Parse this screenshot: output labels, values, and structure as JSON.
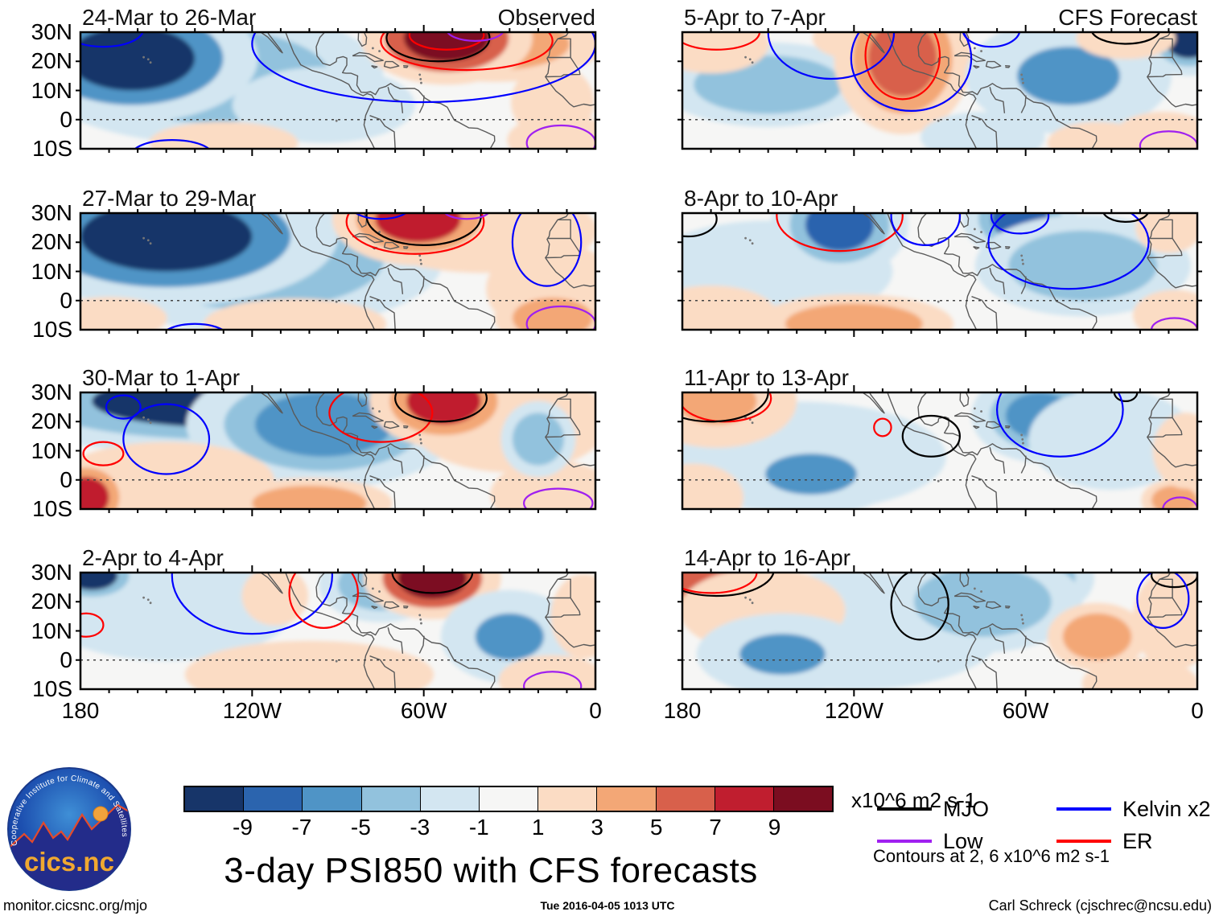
{
  "figure": {
    "title": "3-day PSI850 with CFS forecasts",
    "footer_left": "monitor.cicsnc.org/mjo",
    "footer_center": "Tue 2016-04-05 1013 UTC",
    "footer_right": "Carl Schreck (cjschrec@ncsu.edu)"
  },
  "logo": {
    "ring_text": "Cooperative Institute for Climate and Satellites",
    "name": "cics.nc"
  },
  "colorbar": {
    "units": "x10^6 m2 s-1",
    "tick_labels": [
      "-9",
      "-7",
      "-5",
      "-3",
      "-1",
      "1",
      "3",
      "5",
      "7",
      "9"
    ],
    "colors": [
      "#173569",
      "#2b64ae",
      "#4f94c6",
      "#92c2dd",
      "#d3e6f1",
      "#f6f6f5",
      "#fbdcc4",
      "#f3a776",
      "#d8604b",
      "#c01e2f",
      "#7b0d20"
    ]
  },
  "legend": {
    "items": [
      {
        "key": "mjo",
        "label": "MJO",
        "color": "#000000"
      },
      {
        "key": "kelvin",
        "label": "Kelvin x2",
        "color": "#0000ff"
      },
      {
        "key": "low",
        "label": "Low",
        "color": "#a020f0"
      },
      {
        "key": "er",
        "label": "ER",
        "color": "#ff0000"
      }
    ],
    "note": "Contours at 2, 6 x10^6 m2 s-1"
  },
  "axes": {
    "lon_tick_labels": [
      "180",
      "120W",
      "60W",
      "0"
    ],
    "lon_tick_values": [
      -180,
      -120,
      -60,
      0
    ],
    "lat_tick_labels": [
      "30N",
      "20N",
      "10N",
      "0",
      "10S"
    ],
    "lat_tick_values": [
      30,
      20,
      10,
      0,
      -10
    ],
    "lon_range": [
      -180,
      0
    ],
    "lat_range": [
      -10,
      30
    ]
  },
  "chart_data": {
    "type": "filled-contour-map-grid",
    "field": "PSI850 anomaly",
    "units": "x10^6 m2 s-1",
    "shading_levels": [
      -9,
      -7,
      -5,
      -3,
      -1,
      1,
      3,
      5,
      7,
      9
    ],
    "contour_levels": [
      2,
      6
    ],
    "grid": {
      "rows": 4,
      "cols": 2,
      "left_column": "Observed",
      "right_column": "CFS Forecast"
    },
    "panels": [
      {
        "title": "24-Mar to 26-Mar",
        "corner_label": "Observed",
        "kind": "observed",
        "blobs": [
          [
            -135,
            15,
            42,
            16,
            -3
          ],
          [
            -162,
            21,
            22,
            11,
            -10
          ],
          [
            -95,
            5,
            22,
            9,
            -2
          ],
          [
            -35,
            26,
            26,
            9,
            4
          ],
          [
            -52,
            28,
            15,
            8,
            10
          ],
          [
            -15,
            6,
            10,
            9,
            2
          ],
          [
            -12,
            -7,
            13,
            6,
            3
          ],
          [
            -130,
            -8,
            18,
            5,
            2
          ]
        ],
        "contours": [
          [
            "kelvin",
            -60,
            26,
            60,
            20
          ],
          [
            "kelvin",
            -172,
            31,
            14,
            6
          ],
          [
            "kelvin",
            -148,
            -12,
            14,
            5
          ],
          [
            "er",
            -45,
            27,
            30,
            10
          ],
          [
            "er",
            -52,
            29,
            13,
            5
          ],
          [
            "mjo",
            -55,
            28,
            18,
            8
          ],
          [
            "low",
            -42,
            31,
            10,
            4
          ],
          [
            "low",
            -12,
            -8,
            12,
            6
          ]
        ]
      },
      {
        "title": "5-Apr to 7-Apr",
        "corner_label": "CFS Forecast",
        "kind": "forecast",
        "blobs": [
          [
            -150,
            12,
            26,
            10,
            -4
          ],
          [
            -170,
            26,
            14,
            7,
            2
          ],
          [
            -120,
            28,
            10,
            5,
            2
          ],
          [
            -103,
            21,
            12,
            13,
            7
          ],
          [
            -45,
            15,
            18,
            10,
            -5
          ],
          [
            -3,
            27,
            8,
            6,
            -9
          ],
          [
            -25,
            28,
            12,
            5,
            3
          ],
          [
            -12,
            -6,
            12,
            6,
            3
          ],
          [
            -75,
            -6,
            15,
            6,
            -2
          ],
          [
            -35,
            -8,
            12,
            5,
            2
          ]
        ],
        "contours": [
          [
            "er",
            -168,
            30,
            15,
            6
          ],
          [
            "er",
            -103,
            22,
            13,
            15
          ],
          [
            "kelvin",
            -128,
            30,
            22,
            16
          ],
          [
            "kelvin",
            -100,
            21,
            21,
            18
          ],
          [
            "kelvin",
            -72,
            31,
            10,
            6
          ],
          [
            "mjo",
            -25,
            31,
            12,
            5
          ],
          [
            "low",
            -10,
            -9,
            10,
            5
          ]
        ]
      },
      {
        "title": "27-Mar to 29-Mar",
        "corner_label": "",
        "kind": "observed",
        "blobs": [
          [
            -120,
            14,
            46,
            17,
            -4
          ],
          [
            -150,
            22,
            30,
            12,
            -10
          ],
          [
            -40,
            24,
            28,
            10,
            3
          ],
          [
            -62,
            28,
            15,
            8,
            8
          ],
          [
            -15,
            4,
            16,
            11,
            2
          ],
          [
            -15,
            -6,
            14,
            7,
            4
          ],
          [
            -105,
            -8,
            22,
            6,
            3
          ],
          [
            -170,
            -6,
            14,
            5,
            2
          ]
        ],
        "contours": [
          [
            "mjo",
            -60,
            29,
            20,
            10
          ],
          [
            "er",
            -63,
            27,
            24,
            11
          ],
          [
            "kelvin",
            -17,
            20,
            12,
            15
          ],
          [
            "kelvin",
            -140,
            -13,
            12,
            5
          ],
          [
            "kelvin",
            -75,
            32,
            10,
            4
          ],
          [
            "low",
            -12,
            -8,
            12,
            6
          ],
          [
            "low",
            -45,
            31,
            8,
            3
          ]
        ]
      },
      {
        "title": "8-Apr to 10-Apr",
        "corner_label": "",
        "kind": "forecast",
        "blobs": [
          [
            -150,
            10,
            30,
            12,
            -2
          ],
          [
            -125,
            26,
            12,
            9,
            -7
          ],
          [
            -62,
            28,
            10,
            7,
            -8
          ],
          [
            -40,
            12,
            26,
            12,
            -4
          ],
          [
            -170,
            -5,
            16,
            7,
            2
          ],
          [
            -120,
            -8,
            24,
            7,
            4
          ],
          [
            -10,
            25,
            8,
            6,
            2
          ],
          [
            -8,
            -5,
            10,
            6,
            2
          ]
        ],
        "contours": [
          [
            "er",
            -125,
            29,
            22,
            12
          ],
          [
            "kelvin",
            -95,
            29,
            12,
            10
          ],
          [
            "kelvin",
            -45,
            20,
            28,
            16
          ],
          [
            "kelvin",
            -62,
            29,
            10,
            6
          ],
          [
            "mjo",
            -178,
            28,
            10,
            6
          ],
          [
            "mjo",
            -25,
            31,
            8,
            4
          ],
          [
            "low",
            -8,
            -10,
            8,
            4
          ]
        ]
      },
      {
        "title": "30-Mar to 1-Apr",
        "corner_label": "",
        "kind": "observed",
        "blobs": [
          [
            -130,
            27,
            46,
            9,
            -9
          ],
          [
            -95,
            19,
            24,
            11,
            -6
          ],
          [
            -150,
            0,
            26,
            9,
            2
          ],
          [
            -30,
            20,
            24,
            12,
            3
          ],
          [
            -53,
            27,
            13,
            8,
            9
          ],
          [
            -178,
            -6,
            8,
            7,
            8
          ],
          [
            -100,
            -8,
            20,
            6,
            4
          ],
          [
            -15,
            -5,
            15,
            8,
            3
          ],
          [
            -20,
            14,
            9,
            9,
            -3
          ]
        ],
        "contours": [
          [
            "kelvin",
            -165,
            25,
            6,
            4
          ],
          [
            "kelvin",
            -150,
            14,
            15,
            12
          ],
          [
            "er",
            -172,
            9,
            7,
            4
          ],
          [
            "er",
            -75,
            23,
            18,
            10
          ],
          [
            "mjo",
            -54,
            28,
            16,
            8
          ],
          [
            "low",
            -13,
            -8,
            12,
            5
          ]
        ]
      },
      {
        "title": "11-Apr to 13-Apr",
        "corner_label": "",
        "kind": "forecast",
        "blobs": [
          [
            -140,
            8,
            36,
            13,
            -2
          ],
          [
            -168,
            27,
            14,
            8,
            5
          ],
          [
            -135,
            2,
            16,
            7,
            -5
          ],
          [
            -55,
            22,
            12,
            8,
            -6
          ],
          [
            -30,
            14,
            20,
            12,
            -2
          ],
          [
            -176,
            -6,
            12,
            8,
            2
          ],
          [
            -8,
            -7,
            8,
            5,
            4
          ],
          [
            -4,
            10,
            8,
            9,
            2
          ]
        ],
        "contours": [
          [
            "er",
            -165,
            28,
            16,
            8
          ],
          [
            "er",
            -110,
            18,
            3,
            3
          ],
          [
            "mjo",
            -170,
            30,
            20,
            10
          ],
          [
            "mjo",
            -93,
            15,
            10,
            7
          ],
          [
            "mjo",
            -25,
            30,
            4,
            3
          ],
          [
            "kelvin",
            -48,
            24,
            22,
            16
          ],
          [
            "low",
            -6,
            -10,
            6,
            4
          ]
        ]
      },
      {
        "title": "2-Apr to 4-Apr",
        "corner_label": "",
        "kind": "observed",
        "blobs": [
          [
            -150,
            20,
            32,
            14,
            -2
          ],
          [
            -176,
            29,
            9,
            5,
            -9
          ],
          [
            -75,
            26,
            15,
            9,
            -4
          ],
          [
            -57,
            28,
            12,
            7,
            10
          ],
          [
            -30,
            8,
            12,
            8,
            -5
          ],
          [
            -4,
            15,
            8,
            10,
            3
          ],
          [
            -100,
            -5,
            30,
            8,
            2
          ],
          [
            -15,
            -7,
            13,
            6,
            2
          ],
          [
            -112,
            22,
            8,
            7,
            2
          ]
        ],
        "contours": [
          [
            "kelvin",
            -120,
            29,
            28,
            20
          ],
          [
            "er",
            -178,
            12,
            6,
            4
          ],
          [
            "er",
            -95,
            23,
            12,
            12
          ],
          [
            "mjo",
            -57,
            30,
            14,
            7
          ],
          [
            "low",
            -15,
            -9,
            10,
            5
          ]
        ]
      },
      {
        "title": "14-Apr to 16-Apr",
        "corner_label": "",
        "kind": "forecast",
        "blobs": [
          [
            -120,
            10,
            36,
            14,
            -2
          ],
          [
            -172,
            28,
            14,
            7,
            7
          ],
          [
            -152,
            17,
            20,
            10,
            2
          ],
          [
            -145,
            2,
            15,
            7,
            -5
          ],
          [
            -60,
            28,
            12,
            7,
            -8
          ],
          [
            -75,
            20,
            24,
            12,
            -3
          ],
          [
            -35,
            8,
            12,
            8,
            4
          ],
          [
            -8,
            14,
            10,
            12,
            2
          ],
          [
            -20,
            -8,
            14,
            6,
            2
          ]
        ],
        "contours": [
          [
            "er",
            -170,
            30,
            16,
            7
          ],
          [
            "mjo",
            -168,
            31,
            20,
            9
          ],
          [
            "mjo",
            -97,
            19,
            10,
            12
          ],
          [
            "mjo",
            -8,
            29,
            8,
            4
          ],
          [
            "kelvin",
            -12,
            21,
            9,
            10
          ]
        ]
      }
    ]
  }
}
